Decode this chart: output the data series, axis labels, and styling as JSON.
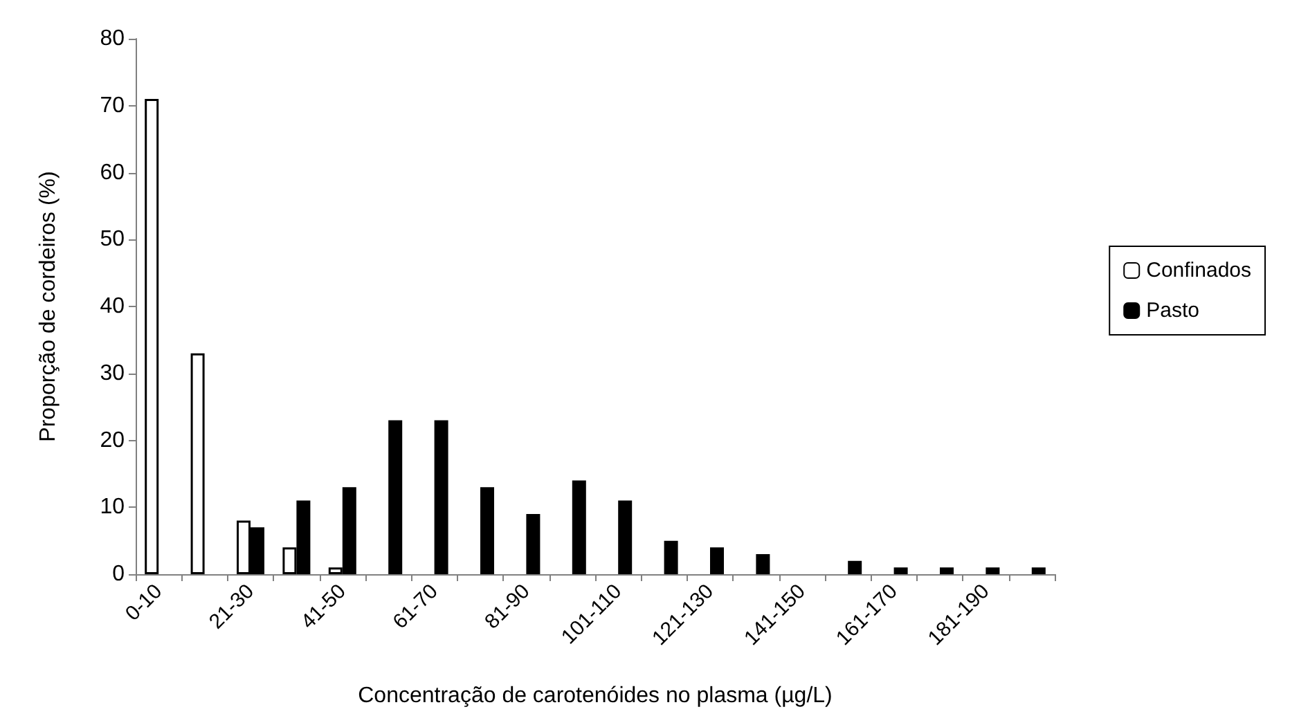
{
  "chart_data": {
    "type": "bar",
    "xlabel": "Concentração de carotenóides no plasma (µg/L)",
    "ylabel": "Proporção de cordeiros (%)",
    "categories": [
      "0-10",
      null,
      "21-30",
      null,
      "41-50",
      null,
      "61-70",
      null,
      "81-90",
      null,
      "101-110",
      null,
      "121-130",
      null,
      "141-150",
      null,
      "161-170",
      null,
      "181-190",
      null
    ],
    "series": [
      {
        "name": "Confinados",
        "color": "#ffffff",
        "values": [
          71,
          33,
          8,
          4,
          1,
          null,
          null,
          null,
          null,
          null,
          null,
          null,
          null,
          null,
          null,
          null,
          null,
          null,
          null,
          null
        ]
      },
      {
        "name": "Pasto",
        "color": "#000000",
        "values": [
          null,
          null,
          7,
          11,
          13,
          23,
          23,
          13,
          9,
          14,
          11,
          5,
          4,
          3,
          null,
          2,
          1,
          1,
          1,
          1
        ]
      }
    ],
    "ylim": [
      0,
      80
    ],
    "yticks": [
      0,
      10,
      20,
      30,
      40,
      50,
      60,
      70,
      80
    ],
    "grid": false,
    "legend": "right"
  }
}
